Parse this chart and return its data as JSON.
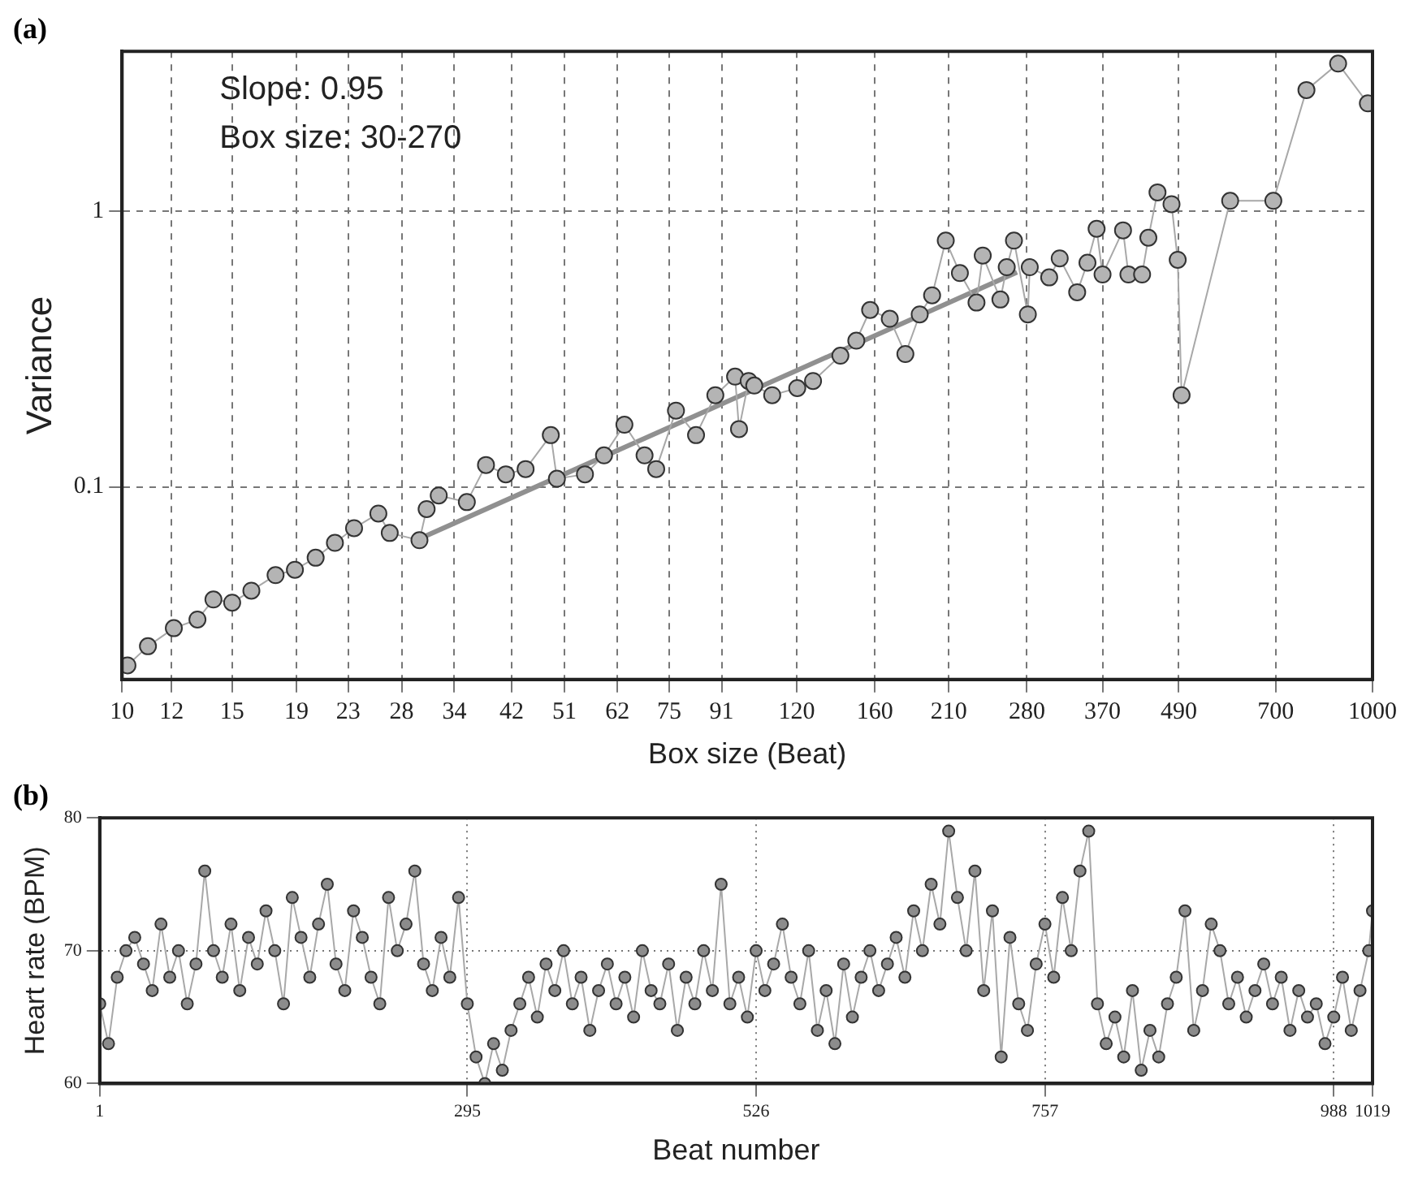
{
  "chart_data": [
    {
      "type": "line",
      "title": "(a)",
      "xlabel": "Box size (Beat)",
      "ylabel": "Variance",
      "annotations": [
        "Slope: 0.95",
        "Box size: 30-270"
      ],
      "log": "xy",
      "grid": true,
      "marker": "circle",
      "line_style": "solid",
      "xlim": [
        10,
        1000
      ],
      "xticks": [
        10,
        12,
        15,
        19,
        23,
        28,
        34,
        42,
        51,
        62,
        75,
        91,
        120,
        160,
        210,
        280,
        370,
        490,
        700,
        1000
      ],
      "ylim": [
        0.02,
        3.8
      ],
      "yticks": [
        0.1,
        1
      ],
      "series": [
        {
          "color": "#b4b4b4",
          "x": [
            10.2,
            11,
            12.1,
            13.2,
            14,
            15,
            16.1,
            17.6,
            18.9,
            20.4,
            21.9,
            23.5,
            25.7,
            26.8,
            29.9,
            30.7,
            32.1,
            35.6,
            38.2,
            41.1,
            44.2,
            48.5,
            49.6,
            55,
            59,
            63.6,
            68.5,
            71.5,
            76.9,
            82.8,
            88.9,
            95.6,
            97,
            100.5,
            102.6,
            109.6,
            120.2,
            127.4,
            140.9,
            149.4,
            157.2,
            169,
            179,
            188.7,
            197.5,
            207.7,
            218.8,
            232.6,
            238,
            254,
            260,
            267,
            281,
            283,
            304,
            316,
            337,
            350,
            362,
            370,
            399,
            407,
            428,
            438,
            453,
            477,
            488,
            495,
            592,
            694,
            784,
            881,
            983
          ],
          "values": [
            0.0225,
            0.0264,
            0.0307,
            0.033,
            0.039,
            0.038,
            0.042,
            0.0478,
            0.05,
            0.0553,
            0.0626,
            0.0708,
            0.08,
            0.068,
            0.064,
            0.083,
            0.093,
            0.088,
            0.12,
            0.111,
            0.116,
            0.154,
            0.107,
            0.111,
            0.13,
            0.168,
            0.13,
            0.116,
            0.189,
            0.154,
            0.215,
            0.251,
            0.162,
            0.242,
            0.233,
            0.215,
            0.228,
            0.242,
            0.299,
            0.339,
            0.438,
            0.407,
            0.303,
            0.422,
            0.495,
            0.782,
            0.596,
            0.466,
            0.69,
            0.478,
            0.626,
            0.782,
            0.422,
            0.626,
            0.575,
            0.674,
            0.508,
            0.65,
            0.863,
            0.589,
            0.852,
            0.589,
            0.589,
            0.801,
            1.17,
            1.06,
            0.666,
            0.215,
            1.09,
            1.09,
            2.75,
            3.43,
            2.46
          ]
        },
        {
          "type": "line",
          "color": "#909090",
          "marker": "none",
          "x": [
            30,
            270
          ],
          "values": [
            0.065,
            0.6
          ]
        }
      ]
    },
    {
      "type": "line",
      "title": "(b)",
      "xlabel": "Beat number",
      "ylabel": "Heart rate (BPM)",
      "grid": true,
      "marker": "circle",
      "line_style": "solid",
      "xlim": [
        1,
        1019
      ],
      "xticks": [
        1,
        295,
        526,
        757,
        988,
        1019
      ],
      "ylim": [
        60,
        80
      ],
      "yticks": [
        60,
        70,
        80
      ],
      "series": [
        {
          "color": "#8c8c8c",
          "x": [
            1,
            8,
            15,
            22,
            29,
            36,
            43,
            50,
            57,
            64,
            71,
            78,
            85,
            92,
            99,
            106,
            113,
            120,
            127,
            134,
            141,
            148,
            155,
            162,
            169,
            176,
            183,
            190,
            197,
            204,
            211,
            218,
            225,
            232,
            239,
            246,
            253,
            260,
            267,
            274,
            281,
            288,
            295,
            302,
            309,
            316,
            323,
            330,
            337,
            344,
            351,
            358,
            365,
            372,
            379,
            386,
            393,
            400,
            407,
            414,
            421,
            428,
            435,
            442,
            449,
            456,
            463,
            470,
            477,
            484,
            491,
            498,
            505,
            512,
            519,
            526,
            533,
            540,
            547,
            554,
            561,
            568,
            575,
            582,
            589,
            596,
            603,
            610,
            617,
            624,
            631,
            638,
            645,
            652,
            659,
            666,
            673,
            680,
            687,
            694,
            701,
            708,
            715,
            722,
            729,
            736,
            743,
            750,
            757,
            764,
            771,
            778,
            785,
            792,
            799,
            806,
            813,
            820,
            827,
            834,
            841,
            848,
            855,
            862,
            869,
            876,
            883,
            890,
            897,
            904,
            911,
            918,
            925,
            932,
            939,
            946,
            953,
            960,
            967,
            974,
            981,
            988,
            995,
            1002,
            1009,
            1016,
            1019
          ],
          "values": [
            66,
            63,
            68,
            70,
            71,
            69,
            67,
            72,
            68,
            70,
            66,
            69,
            76,
            70,
            68,
            72,
            67,
            71,
            69,
            73,
            70,
            66,
            74,
            71,
            68,
            72,
            75,
            69,
            67,
            73,
            71,
            68,
            66,
            74,
            70,
            72,
            76,
            69,
            67,
            71,
            68,
            74,
            66,
            62,
            60,
            63,
            61,
            64,
            66,
            68,
            65,
            69,
            67,
            70,
            66,
            68,
            64,
            67,
            69,
            66,
            68,
            65,
            70,
            67,
            66,
            69,
            64,
            68,
            66,
            70,
            67,
            75,
            66,
            68,
            65,
            70,
            67,
            69,
            72,
            68,
            66,
            70,
            64,
            67,
            63,
            69,
            65,
            68,
            70,
            67,
            69,
            71,
            68,
            73,
            70,
            75,
            72,
            79,
            74,
            70,
            76,
            67,
            73,
            62,
            71,
            66,
            64,
            69,
            72,
            68,
            74,
            70,
            76,
            79,
            66,
            63,
            65,
            62,
            67,
            61,
            64,
            62,
            66,
            68,
            73,
            64,
            67,
            72,
            70,
            66,
            68,
            65,
            67,
            69,
            66,
            68,
            64,
            67,
            65,
            66,
            63,
            65,
            68,
            64,
            67,
            70,
            73
          ]
        }
      ]
    }
  ]
}
